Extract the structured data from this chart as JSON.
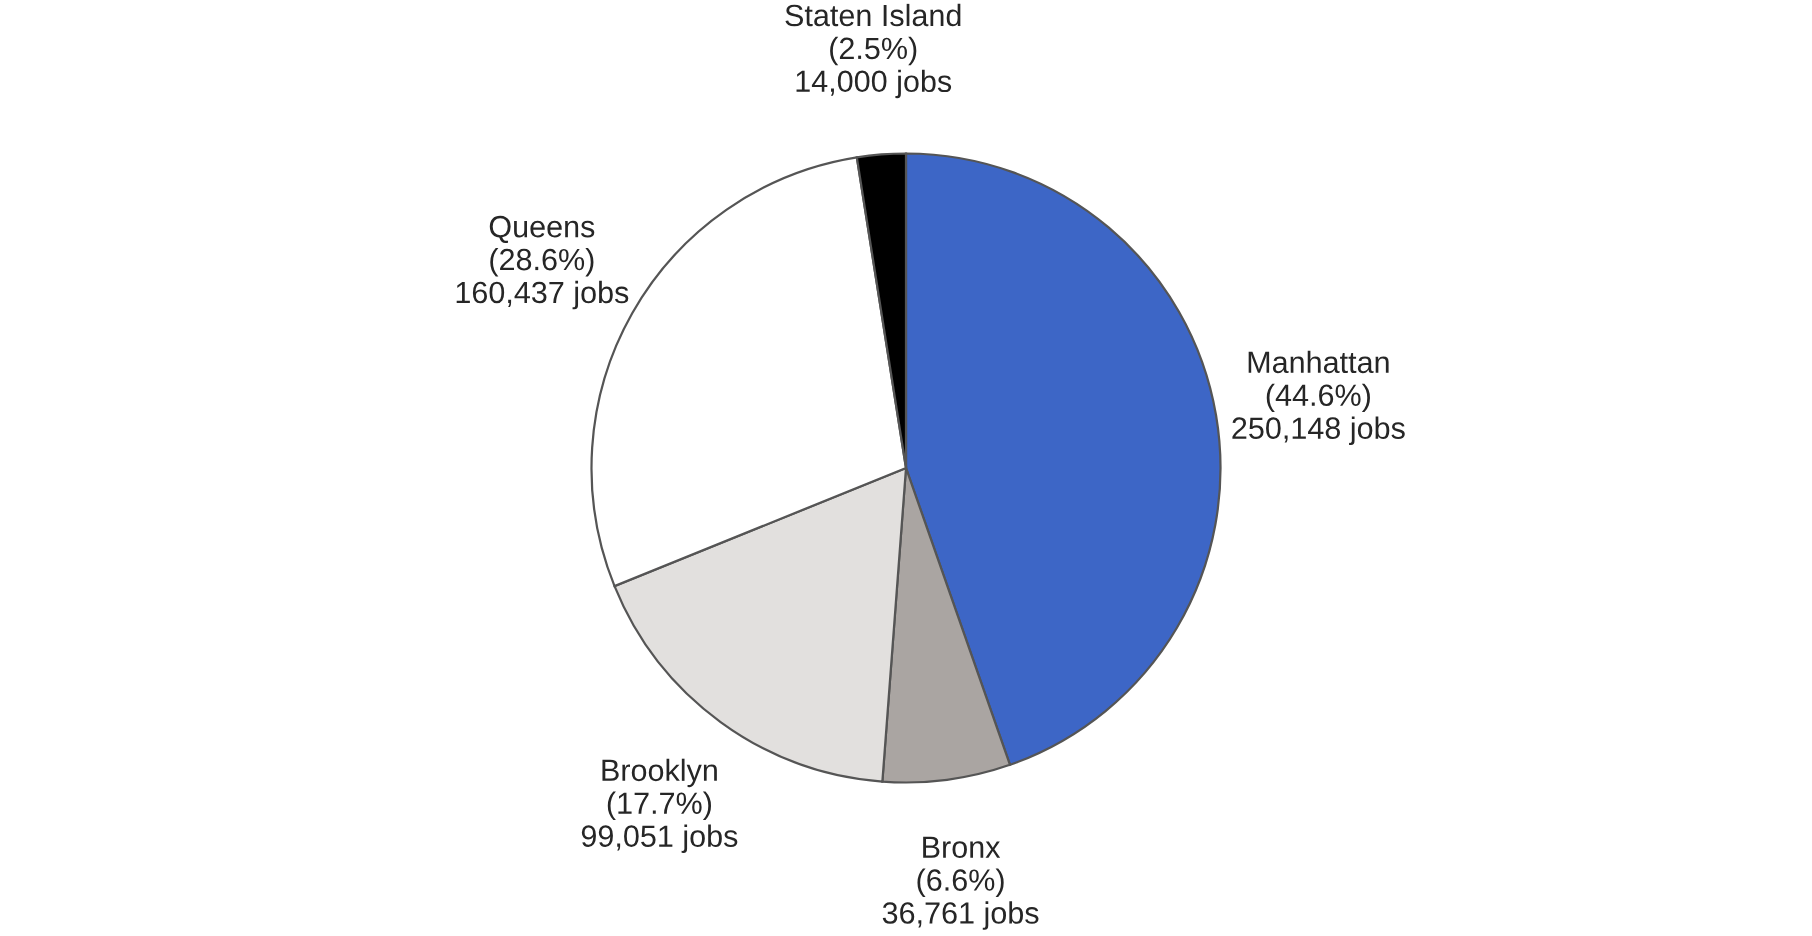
{
  "chart_data": {
    "type": "pie",
    "categories": [
      "Manhattan",
      "Bronx",
      "Brooklyn",
      "Queens",
      "Staten Island"
    ],
    "values": [
      250148,
      36761,
      99051,
      160437,
      14000
    ],
    "value_labels": [
      "(44.6%)\n250,148 jobs",
      "(6.6%)\n36,761 jobs",
      "(17.7%)\n99,051 jobs",
      "(28.6%)\n160,437 jobs",
      "(2.5%)\n14,000 jobs"
    ],
    "colors": [
      "#3d66c6",
      "#aaa5a2",
      "#e2e0de",
      "#ffffff",
      "#000000"
    ]
  }
}
